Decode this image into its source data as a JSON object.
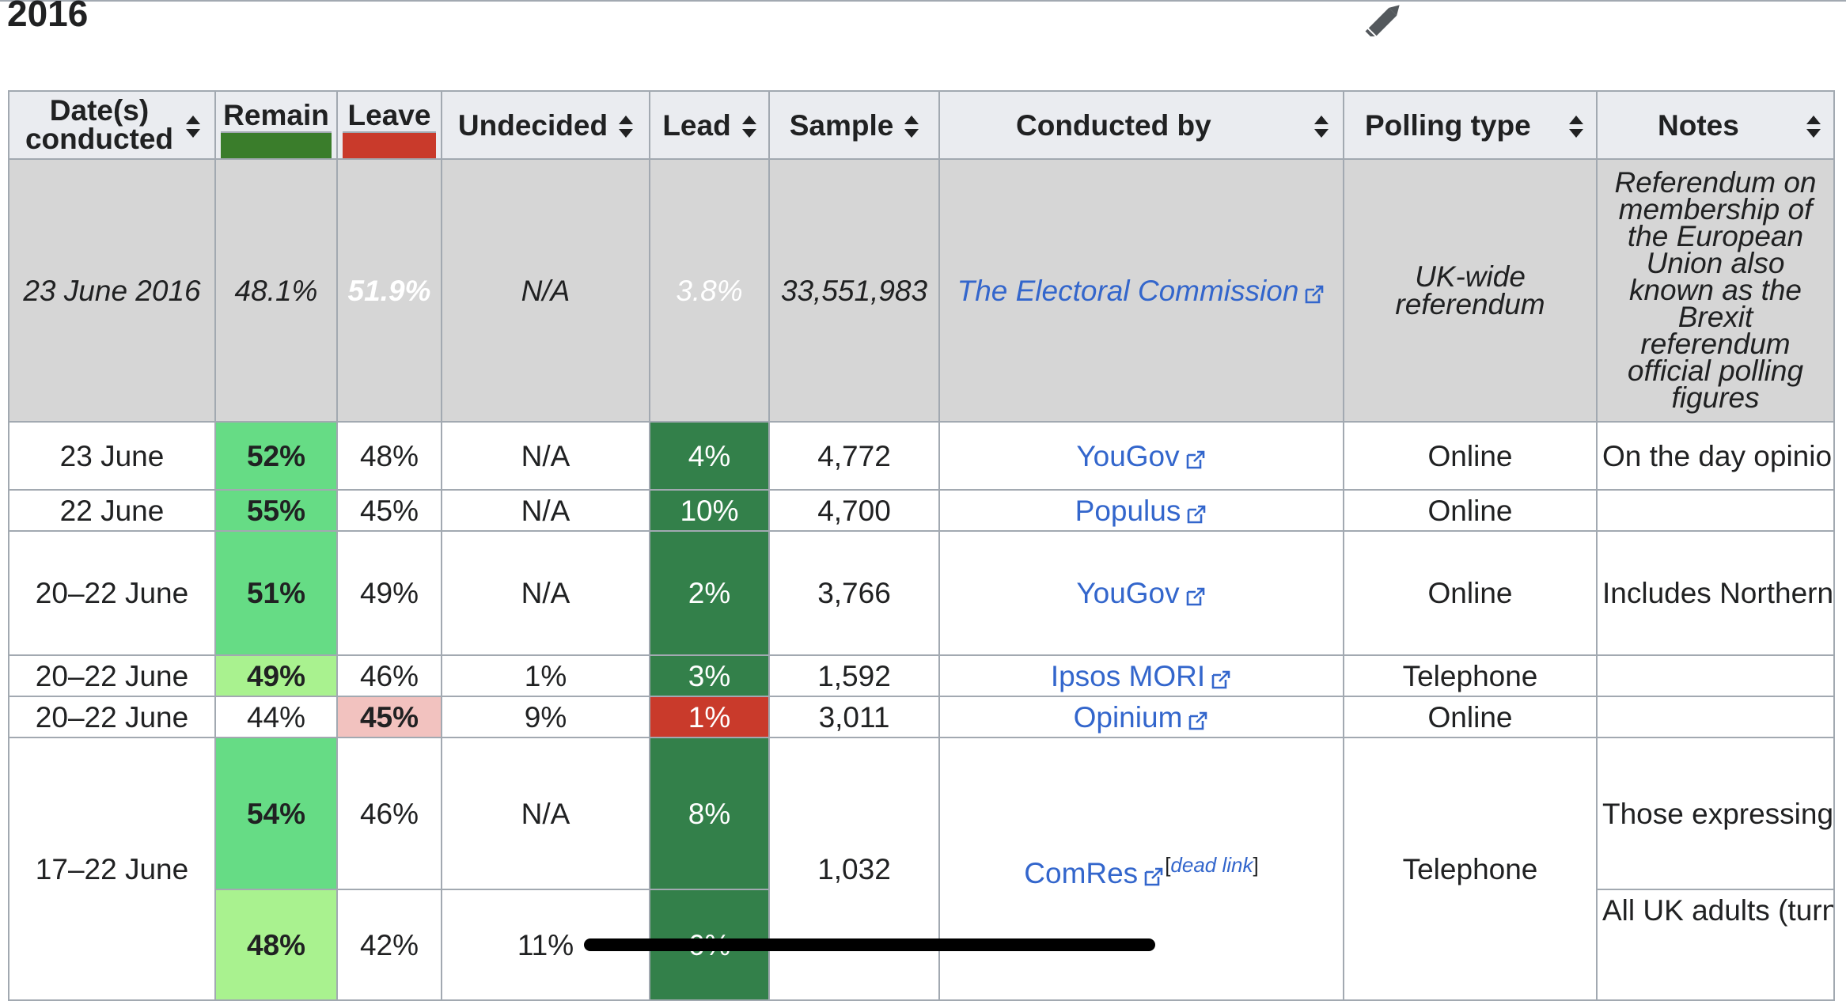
{
  "section": {
    "title": "2016",
    "edit_icon": "pencil-icon"
  },
  "table": {
    "headers": {
      "date": "Date(s) conducted",
      "remain": "Remain",
      "leave": "Leave",
      "undecided": "Undecided",
      "lead": "Lead",
      "sample": "Sample",
      "conducted_by": "Conducted by",
      "polling_type": "Polling type",
      "notes": "Notes"
    },
    "colors": {
      "remain_party": "#3a7d2b",
      "leave_party": "#c93a2b",
      "remain_win": "#66dc85",
      "remain_win_light": "#a9f28f",
      "leave_win_light": "#f2c2bf",
      "lead_remain": "#33804a",
      "lead_leave": "#c93a2b",
      "official_row": "#d6d6d6",
      "link": "#3366cc"
    },
    "rows": [
      {
        "date": "23 June 2016",
        "remain": "48.1%",
        "leave": "51.9%",
        "undecided": "N/A",
        "lead": "3.8%",
        "sample": "33,551,983",
        "conducted_by": "The Electoral Commission",
        "polling_type": "UK-wide referendum",
        "notes": "Referendum on membership of the European Union also known as the Brexit referendum official polling figures"
      },
      {
        "date": "23 June",
        "remain": "52%",
        "leave": "48%",
        "undecided": "N/A",
        "lead": "4%",
        "sample": "4,772",
        "conducted_by": "YouGov",
        "polling_type": "Online",
        "notes": "On the day opinion poll"
      },
      {
        "date": "22 June",
        "remain": "55%",
        "leave": "45%",
        "undecided": "N/A",
        "lead": "10%",
        "sample": "4,700",
        "conducted_by": "Populus",
        "polling_type": "Online",
        "notes": ""
      },
      {
        "date": "20–22 June",
        "remain": "51%",
        "leave": "49%",
        "undecided": "N/A",
        "lead": "2%",
        "sample": "3,766",
        "conducted_by": "YouGov",
        "polling_type": "Online",
        "notes": "Includes Northern Ireland (turnout weighted)"
      },
      {
        "date": "20–22 June",
        "remain": "49%",
        "leave": "46%",
        "undecided": "1%",
        "lead": "3%",
        "sample": "1,592",
        "conducted_by": "Ipsos MORI",
        "polling_type": "Telephone",
        "notes": ""
      },
      {
        "date": "20–22 June",
        "remain": "44%",
        "leave": "45%",
        "undecided": "9%",
        "lead": "1%",
        "sample": "3,011",
        "conducted_by": "Opinium",
        "polling_type": "Online",
        "notes": ""
      },
      {
        "date": "17–22 June",
        "sample": "1,032",
        "conducted_by": "ComRes",
        "dead_link": "dead link",
        "polling_type": "Telephone",
        "sub": [
          {
            "remain": "54%",
            "leave": "46%",
            "undecided": "N/A",
            "lead": "8%",
            "notes": "Those expressing a voting intention (turnout weighted)"
          },
          {
            "remain": "48%",
            "leave": "42%",
            "undecided": "11%",
            "lead": "6%",
            "notes": "All UK adults (turnout weighted)"
          }
        ]
      }
    ]
  }
}
